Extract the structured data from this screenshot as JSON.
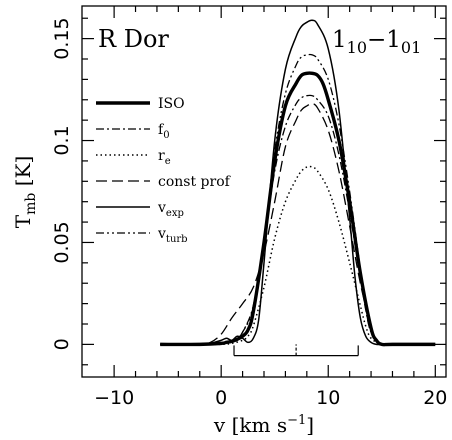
{
  "chart_data": {
    "type": "line",
    "title": "",
    "annotations": {
      "source": "R Dor",
      "transition_base": "1",
      "transition_upper_sub": "10",
      "transition_dash": "−",
      "transition_lower_sub": "01"
    },
    "xlabel": {
      "main": "v [km s",
      "exp": "−1",
      "close": "]"
    },
    "ylabel": {
      "main": "T",
      "sub": "mb",
      "rest": " [K]"
    },
    "xlim": [
      -13,
      21
    ],
    "ylim": [
      -0.016,
      0.166
    ],
    "xticks": [
      -10,
      0,
      10,
      20
    ],
    "xtick_labels": [
      "−10",
      "0",
      "10",
      "20"
    ],
    "yticks": [
      0,
      0.05,
      0.1,
      0.15
    ],
    "ytick_labels": [
      "0",
      "0.05",
      "0.1",
      "0.15"
    ],
    "grid": false,
    "legend_position": "left",
    "series": [
      {
        "name": "ISO",
        "style": "thick",
        "x": [
          -5.7,
          -2,
          0,
          0.5,
          1,
          1.5,
          2,
          2.5,
          3,
          4,
          5,
          6,
          7,
          7.5,
          8,
          8.5,
          9,
          9.5,
          10,
          11,
          12,
          13,
          14,
          14.5,
          15,
          16,
          20
        ],
        "y": [
          0,
          0,
          0.0005,
          0.001,
          0.0015,
          0.0025,
          0.004,
          0.007,
          0.016,
          0.05,
          0.09,
          0.117,
          0.128,
          0.132,
          0.133,
          0.133,
          0.132,
          0.128,
          0.12,
          0.1,
          0.07,
          0.035,
          0.008,
          0.002,
          0,
          0,
          0
        ]
      },
      {
        "name": "f_0",
        "style": "dashdot",
        "x": [
          -5.7,
          -2,
          0,
          1,
          1.5,
          2,
          3,
          4,
          5,
          6,
          7,
          7.5,
          8,
          8.5,
          9,
          10,
          11,
          12,
          13,
          13.5,
          14,
          15,
          16,
          20
        ],
        "y": [
          0,
          0,
          0.0005,
          0.0015,
          0.003,
          0.006,
          0.019,
          0.05,
          0.085,
          0.107,
          0.118,
          0.121,
          0.122,
          0.122,
          0.12,
          0.112,
          0.093,
          0.065,
          0.033,
          0.017,
          0.006,
          0,
          0,
          0
        ]
      },
      {
        "name": "r_e",
        "style": "dotted",
        "x": [
          -5.7,
          -2,
          0,
          1,
          2,
          2.5,
          3,
          4,
          5,
          6,
          7,
          7.5,
          8,
          8.5,
          9,
          10,
          11,
          12,
          13,
          13.5,
          14,
          15,
          16,
          20
        ],
        "y": [
          0,
          0,
          0,
          0.0005,
          0.002,
          0.004,
          0.009,
          0.028,
          0.052,
          0.07,
          0.081,
          0.085,
          0.087,
          0.087,
          0.085,
          0.076,
          0.06,
          0.04,
          0.019,
          0.009,
          0.003,
          0,
          0,
          0
        ]
      },
      {
        "name": "const prof",
        "style": "dashed",
        "x": [
          -5.7,
          -2,
          -1,
          0,
          1,
          2,
          3,
          4,
          5,
          6,
          7,
          7.5,
          8,
          8.5,
          9,
          10,
          11,
          12,
          13,
          14,
          14.5,
          15,
          16,
          20
        ],
        "y": [
          0,
          0,
          0.001,
          0.005,
          0.013,
          0.02,
          0.028,
          0.045,
          0.07,
          0.097,
          0.11,
          0.115,
          0.117,
          0.118,
          0.116,
          0.105,
          0.085,
          0.058,
          0.03,
          0.008,
          0.002,
          0,
          0,
          0
        ]
      },
      {
        "name": "v_exp",
        "style": "solid",
        "x": [
          -5.7,
          -2,
          -1,
          0,
          0.5,
          1,
          1.5,
          2,
          2.5,
          3,
          3.5,
          4,
          5,
          6,
          7,
          7.5,
          8,
          8.5,
          9,
          10,
          11,
          12,
          12.5,
          13,
          13.5,
          14,
          14.5,
          15,
          16,
          20
        ],
        "y": [
          0,
          0,
          0.0005,
          0.002,
          0.003,
          0.002,
          0.004,
          0.003,
          0.001,
          0.003,
          0.012,
          0.04,
          0.1,
          0.135,
          0.151,
          0.156,
          0.158,
          0.159,
          0.157,
          0.145,
          0.115,
          0.062,
          0.033,
          0.013,
          0.004,
          0.001,
          0,
          0,
          0,
          0
        ]
      },
      {
        "name": "v_turb",
        "style": "dashdotdot",
        "x": [
          -5.7,
          -2,
          0,
          1,
          1.5,
          2,
          3,
          4,
          5,
          6,
          7,
          7.5,
          8,
          8.5,
          9,
          10,
          11,
          12,
          13,
          13.5,
          14,
          15,
          16,
          20
        ],
        "y": [
          0,
          0,
          0.0005,
          0.0015,
          0.003,
          0.006,
          0.018,
          0.05,
          0.095,
          0.123,
          0.137,
          0.141,
          0.142,
          0.142,
          0.14,
          0.13,
          0.108,
          0.075,
          0.037,
          0.018,
          0.006,
          0,
          0,
          0
        ]
      }
    ],
    "legend": [
      {
        "label": "ISO",
        "sub": "",
        "style": "thick"
      },
      {
        "label": "f",
        "sub": "0",
        "style": "dashdot"
      },
      {
        "label": "r",
        "sub": "e",
        "style": "dotted"
      },
      {
        "label": "const prof",
        "sub": "",
        "style": "dashed"
      },
      {
        "label": "v",
        "sub": "exp",
        "style": "solid"
      },
      {
        "label": "v",
        "sub": "turb",
        "style": "dashdotdot"
      }
    ],
    "marker_bar": {
      "x_left": 1.2,
      "x_center": 7.0,
      "x_right": 12.8
    }
  }
}
